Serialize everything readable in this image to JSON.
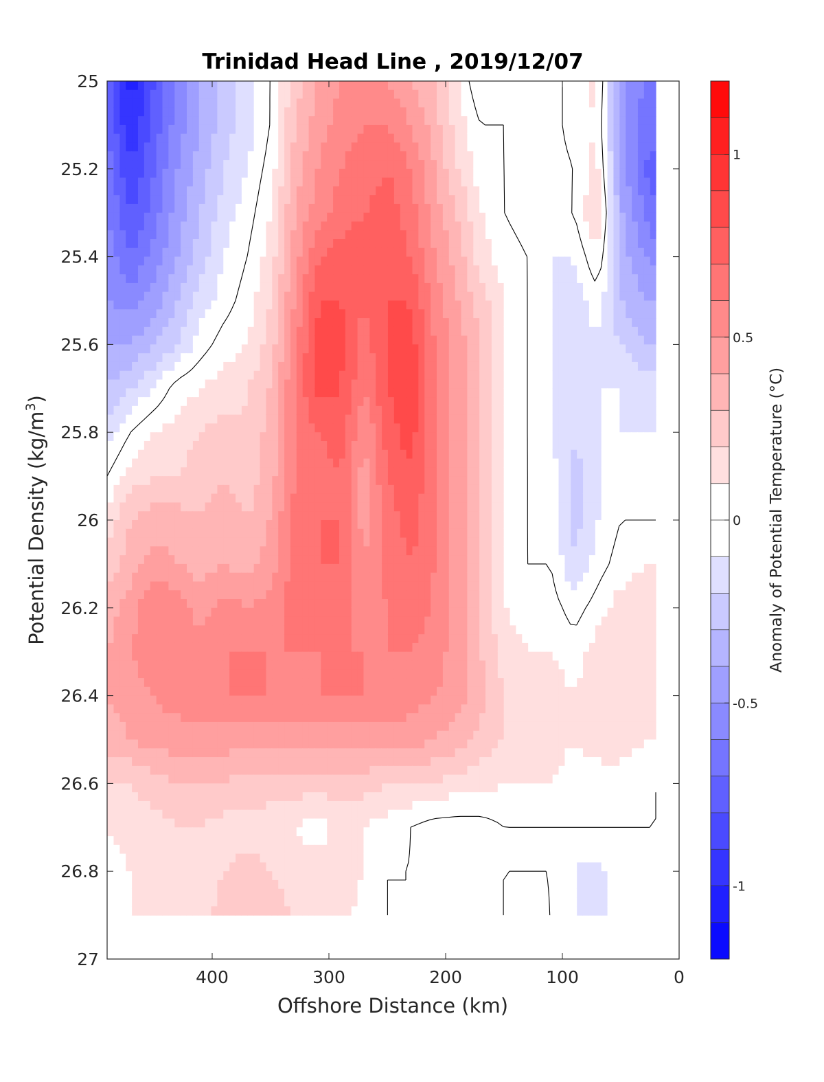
{
  "chart_data": {
    "type": "heatmap",
    "title": "Trinidad Head Line , 2019/12/07",
    "xlabel": "Offshore Distance (km)",
    "ylabel": "Potential Density (kg/m",
    "ylabel_sup": "3",
    "ylabel_close": ")",
    "xlim": [
      490,
      0
    ],
    "ylim": [
      25,
      27
    ],
    "xticks": [
      400,
      300,
      200,
      100,
      0
    ],
    "yticks": [
      25,
      25.2,
      25.4,
      25.6,
      25.8,
      26,
      26.2,
      26.4,
      26.6,
      26.8,
      27
    ],
    "colorbar": {
      "label": "Anomaly of Potential Temperature (°C)",
      "range": [
        -1.2,
        1.2
      ],
      "levels": 24,
      "ticks": [
        {
          "value": 1,
          "label": "1"
        },
        {
          "value": 0.5,
          "label": "0.5"
        },
        {
          "value": 0,
          "label": "0"
        },
        {
          "value": -0.5,
          "label": "-0.5"
        },
        {
          "value": -1,
          "label": "-1"
        }
      ],
      "colormap": "blue-white-red",
      "low_color": "#0000ff",
      "high_color": "#ff0000",
      "mid_color": "#ffffff"
    },
    "data_extent": {
      "x": [
        20,
        490
      ],
      "y": [
        25,
        26.9
      ]
    },
    "field": {
      "x": [
        490,
        470,
        450,
        430,
        410,
        390,
        370,
        350,
        330,
        310,
        290,
        270,
        250,
        230,
        210,
        190,
        170,
        150,
        130,
        110,
        90,
        70,
        50,
        30,
        20
      ],
      "y": [
        25.0,
        25.1,
        25.2,
        25.3,
        25.4,
        25.5,
        25.6,
        25.7,
        25.8,
        25.9,
        26.0,
        26.1,
        26.2,
        26.3,
        26.4,
        26.5,
        26.6,
        26.7,
        26.8,
        26.9
      ],
      "values": [
        [
          -0.75,
          -1.05,
          -0.8,
          -0.6,
          -0.4,
          -0.25,
          -0.15,
          0.0,
          0.25,
          0.4,
          0.5,
          0.55,
          0.5,
          0.4,
          0.3,
          0.1,
          -0.1,
          -0.05,
          -0.05,
          -0.05,
          0.05,
          0.15,
          -0.5,
          -0.6,
          -0.6
        ],
        [
          -0.7,
          -1.0,
          -0.75,
          -0.55,
          -0.4,
          -0.25,
          -0.15,
          0.0,
          0.3,
          0.45,
          0.55,
          0.6,
          0.6,
          0.5,
          0.35,
          0.15,
          0.0,
          0.0,
          -0.05,
          -0.05,
          0.05,
          0.1,
          -0.5,
          -0.65,
          -0.65
        ],
        [
          -0.65,
          -0.9,
          -0.7,
          -0.5,
          -0.35,
          -0.2,
          -0.1,
          0.05,
          0.35,
          0.5,
          0.6,
          0.65,
          0.7,
          0.6,
          0.4,
          0.2,
          0.05,
          0.0,
          -0.05,
          -0.05,
          0.0,
          0.15,
          -0.45,
          -0.7,
          -0.75
        ],
        [
          -0.6,
          -0.8,
          -0.65,
          -0.45,
          -0.3,
          -0.15,
          -0.05,
          0.1,
          0.4,
          0.55,
          0.65,
          0.7,
          0.75,
          0.65,
          0.45,
          0.3,
          0.1,
          0.0,
          -0.05,
          -0.05,
          0.0,
          0.25,
          -0.4,
          -0.6,
          -0.7
        ],
        [
          -0.55,
          -0.7,
          -0.55,
          -0.4,
          -0.25,
          -0.1,
          0.0,
          0.15,
          0.45,
          0.7,
          0.75,
          0.75,
          0.8,
          0.7,
          0.5,
          0.35,
          0.15,
          0.05,
          0.0,
          -0.1,
          -0.1,
          0.1,
          -0.35,
          -0.5,
          -0.55
        ],
        [
          -0.5,
          -0.55,
          -0.45,
          -0.3,
          -0.15,
          -0.05,
          0.05,
          0.2,
          0.5,
          0.8,
          0.8,
          0.7,
          0.8,
          0.8,
          0.55,
          0.4,
          0.25,
          0.1,
          0.0,
          -0.1,
          -0.15,
          -0.05,
          -0.3,
          -0.4,
          -0.4
        ],
        [
          -0.4,
          -0.4,
          -0.3,
          -0.2,
          -0.05,
          0.05,
          0.1,
          0.25,
          0.55,
          0.85,
          0.85,
          0.65,
          0.8,
          0.85,
          0.6,
          0.45,
          0.3,
          0.1,
          0.0,
          -0.1,
          -0.2,
          -0.1,
          -0.2,
          -0.3,
          -0.3
        ],
        [
          -0.3,
          -0.2,
          -0.1,
          0.05,
          0.1,
          0.15,
          0.2,
          0.3,
          0.6,
          0.85,
          0.8,
          0.6,
          0.8,
          0.9,
          0.6,
          0.45,
          0.3,
          0.1,
          0.0,
          -0.1,
          -0.2,
          -0.1,
          -0.1,
          -0.15,
          -0.15
        ],
        [
          -0.15,
          0.0,
          0.1,
          0.15,
          0.2,
          0.25,
          0.2,
          0.35,
          0.6,
          0.7,
          0.75,
          0.5,
          0.75,
          0.85,
          0.6,
          0.45,
          0.3,
          0.1,
          0.0,
          -0.1,
          -0.2,
          -0.1,
          -0.1,
          -0.1,
          -0.1
        ],
        [
          0.0,
          0.15,
          0.2,
          0.2,
          0.25,
          0.3,
          0.25,
          0.35,
          0.6,
          0.65,
          0.7,
          0.45,
          0.7,
          0.8,
          0.6,
          0.45,
          0.3,
          0.1,
          0.0,
          -0.05,
          -0.25,
          -0.1,
          -0.05,
          -0.05,
          -0.05
        ],
        [
          0.15,
          0.3,
          0.35,
          0.35,
          0.3,
          0.35,
          0.3,
          0.4,
          0.65,
          0.7,
          0.7,
          0.45,
          0.65,
          0.75,
          0.6,
          0.45,
          0.3,
          0.1,
          0.0,
          -0.05,
          -0.25,
          -0.1,
          0.0,
          0.0,
          0.0
        ],
        [
          0.25,
          0.35,
          0.45,
          0.4,
          0.35,
          0.4,
          0.35,
          0.45,
          0.65,
          0.7,
          0.7,
          0.5,
          0.65,
          0.7,
          0.6,
          0.45,
          0.3,
          0.1,
          0.0,
          0.0,
          -0.2,
          -0.05,
          0.05,
          0.1,
          0.1
        ],
        [
          0.35,
          0.45,
          0.6,
          0.55,
          0.45,
          0.55,
          0.5,
          0.55,
          0.65,
          0.65,
          0.65,
          0.55,
          0.6,
          0.65,
          0.6,
          0.45,
          0.3,
          0.1,
          0.05,
          0.05,
          -0.05,
          0.05,
          0.15,
          0.15,
          0.15
        ],
        [
          0.4,
          0.5,
          0.6,
          0.6,
          0.55,
          0.6,
          0.6,
          0.6,
          0.6,
          0.6,
          0.6,
          0.6,
          0.6,
          0.6,
          0.55,
          0.45,
          0.3,
          0.15,
          0.1,
          0.1,
          0.05,
          0.15,
          0.2,
          0.15,
          0.15
        ],
        [
          0.4,
          0.45,
          0.5,
          0.55,
          0.55,
          0.6,
          0.6,
          0.6,
          0.55,
          0.6,
          0.6,
          0.6,
          0.55,
          0.55,
          0.5,
          0.45,
          0.35,
          0.2,
          0.15,
          0.15,
          0.1,
          0.2,
          0.2,
          0.15,
          0.15
        ],
        [
          0.35,
          0.4,
          0.45,
          0.45,
          0.45,
          0.45,
          0.45,
          0.45,
          0.45,
          0.45,
          0.45,
          0.45,
          0.45,
          0.45,
          0.4,
          0.35,
          0.25,
          0.2,
          0.15,
          0.15,
          0.1,
          0.15,
          0.15,
          0.1,
          0.1
        ],
        [
          0.2,
          0.2,
          0.25,
          0.3,
          0.3,
          0.3,
          0.25,
          0.25,
          0.25,
          0.25,
          0.25,
          0.25,
          0.2,
          0.2,
          0.2,
          0.15,
          0.15,
          0.1,
          0.1,
          0.1,
          0.05,
          0.05,
          0.05,
          0.05,
          0.0
        ],
        [
          0.1,
          0.15,
          0.15,
          0.2,
          0.2,
          0.15,
          0.15,
          0.15,
          0.1,
          0.05,
          0.15,
          0.1,
          0.05,
          0.0,
          -0.05,
          -0.05,
          -0.05,
          0.0,
          0.0,
          0.0,
          0.0,
          0.0,
          0.0,
          0.0,
          0.0
        ],
        [
          0.05,
          0.1,
          0.15,
          0.2,
          0.15,
          0.2,
          0.25,
          0.2,
          0.15,
          0.15,
          0.15,
          0.1,
          0.0,
          0.0,
          -0.05,
          -0.05,
          0.0,
          0.0,
          0.0,
          0.0,
          -0.1,
          -0.15,
          0.0,
          0.0,
          0.0
        ],
        [
          0.05,
          0.1,
          0.15,
          0.2,
          0.15,
          0.25,
          0.3,
          0.25,
          0.2,
          0.2,
          0.15,
          0.05,
          0.0,
          0.0,
          0.0,
          0.0,
          0.0,
          0.0,
          0.05,
          0.0,
          -0.1,
          -0.2,
          0.0,
          0.0,
          0.0
        ]
      ]
    }
  }
}
